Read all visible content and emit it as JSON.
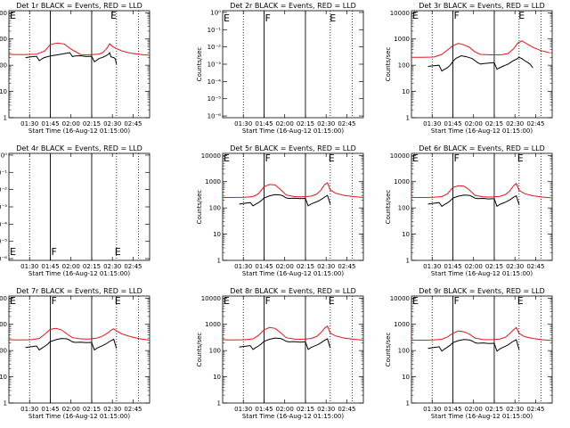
{
  "chart_data": {
    "type": "line",
    "x_tick_labels": [
      "01:30",
      "01:45",
      "02:00",
      "02:15",
      "02:30",
      "02:45"
    ],
    "x_ticks_min": [
      15,
      30,
      45,
      60,
      75,
      90
    ],
    "x_range_min": [
      0,
      102
    ],
    "xlabel": "Start Time (16-Aug-12 01:15:00)",
    "ylabel": "Counts/sec",
    "y_scale": "log",
    "log_tick_labels": [
      "1",
      "10",
      "100",
      "1000",
      "10000"
    ],
    "log_range": [
      1,
      12000
    ],
    "exp_tick_labels": [
      "10⁻⁶",
      "10⁻⁵",
      "10⁻⁴",
      "10⁻³",
      "10⁻²",
      "10⁻¹",
      "10⁰"
    ],
    "exp_range": [
      -6.1,
      0.1
    ],
    "ylabel_tick_sci": "Counts/sec",
    "solid_line_min": [
      30,
      60
    ],
    "dotted_line_min": [
      15,
      78,
      94
    ],
    "colors": {
      "events": "#000000",
      "lld": "#e8141a"
    },
    "panels": [
      {
        "title": "Det 1r BLACK = Events, RED = LLD",
        "scale": "log",
        "flags": [
          {
            "t": 0,
            "letter": "E"
          },
          {
            "t": 73,
            "letter": "E"
          }
        ],
        "lld": {
          "t": [
            0,
            10,
            20,
            26,
            30,
            35,
            40,
            45,
            52,
            56,
            60,
            65,
            68,
            71,
            73,
            75,
            78,
            82,
            88,
            95,
            102
          ],
          "v": [
            260,
            255,
            265,
            350,
            620,
            700,
            650,
            410,
            255,
            250,
            255,
            265,
            300,
            440,
            660,
            520,
            430,
            350,
            290,
            260,
            240
          ]
        },
        "events": {
          "t": [
            12,
            16,
            20,
            22,
            24,
            25,
            27,
            30,
            33,
            36,
            39,
            42,
            44,
            45,
            46,
            48,
            52,
            56,
            60,
            62,
            64,
            65,
            66,
            68,
            70,
            72,
            73,
            74,
            76,
            77,
            78
          ],
          "v": [
            195,
            210,
            220,
            150,
            175,
            190,
            205,
            225,
            240,
            255,
            270,
            290,
            300,
            260,
            215,
            225,
            230,
            215,
            220,
            135,
            160,
            175,
            185,
            200,
            225,
            260,
            300,
            210,
            195,
            180,
            110
          ]
        }
      },
      {
        "title": "Det 2r BLACK = Events, RED = LLD",
        "scale": "exp",
        "flags": [
          {
            "t": 0,
            "letter": "E"
          },
          {
            "t": 30,
            "letter": "F"
          },
          {
            "t": 77,
            "letter": "E"
          }
        ],
        "lld": {
          "t": [],
          "v": []
        },
        "events": {
          "t": [],
          "v": []
        }
      },
      {
        "title": "Det 3r BLACK = Events, RED = LLD",
        "scale": "log",
        "flags": [
          {
            "t": 0,
            "letter": "E"
          },
          {
            "t": 30,
            "letter": "F"
          },
          {
            "t": 77,
            "letter": "E"
          }
        ],
        "lld": {
          "t": [
            0,
            8,
            16,
            22,
            26,
            30,
            34,
            38,
            42,
            46,
            50,
            54,
            58,
            62,
            66,
            70,
            74,
            77,
            80,
            84,
            88,
            94,
            100
          ],
          "v": [
            200,
            200,
            205,
            260,
            380,
            560,
            680,
            600,
            480,
            320,
            260,
            255,
            250,
            250,
            255,
            280,
            420,
            700,
            850,
            640,
            480,
            360,
            300
          ]
        },
        "events": {
          "t": [
            12,
            16,
            20,
            22,
            24,
            26,
            28,
            30,
            32,
            36,
            40,
            44,
            46,
            48,
            50,
            52,
            56,
            60,
            62,
            64,
            66,
            68,
            70,
            72,
            74,
            76,
            78,
            80,
            82,
            84,
            86,
            88
          ],
          "v": [
            90,
            95,
            100,
            60,
            70,
            80,
            100,
            140,
            180,
            230,
            210,
            180,
            150,
            125,
            110,
            115,
            120,
            125,
            70,
            80,
            90,
            100,
            110,
            130,
            150,
            170,
            200,
            180,
            150,
            130,
            110,
            80
          ]
        }
      },
      {
        "title": "Det 4r BLACK = Events, RED = LLD",
        "scale": "exp",
        "flags": [
          {
            "t": 0,
            "letter": "E"
          },
          {
            "t": 30,
            "letter": "F"
          },
          {
            "t": 76,
            "letter": "E"
          }
        ],
        "lld": {
          "t": [],
          "v": []
        },
        "events": {
          "t": [],
          "v": []
        }
      },
      {
        "title": "Det 5r BLACK = Events, RED = LLD",
        "scale": "log",
        "flags": [
          {
            "t": 0,
            "letter": "E"
          },
          {
            "t": 30,
            "letter": "F"
          },
          {
            "t": 76,
            "letter": "E"
          }
        ],
        "lld": {
          "t": [
            0,
            8,
            16,
            22,
            26,
            30,
            34,
            38,
            42,
            46,
            52,
            56,
            60,
            64,
            68,
            71,
            74,
            76,
            78,
            82,
            88,
            95,
            102
          ],
          "v": [
            250,
            250,
            255,
            270,
            350,
            650,
            780,
            750,
            500,
            310,
            270,
            265,
            270,
            280,
            330,
            460,
            780,
            900,
            480,
            360,
            300,
            270,
            250
          ]
        },
        "events": {
          "t": [
            12,
            16,
            20,
            22,
            24,
            26,
            28,
            30,
            34,
            38,
            42,
            44,
            46,
            48,
            52,
            56,
            60,
            62,
            64,
            66,
            68,
            70,
            72,
            74,
            76,
            78
          ],
          "v": [
            140,
            150,
            160,
            120,
            140,
            160,
            190,
            240,
            290,
            320,
            310,
            280,
            240,
            230,
            235,
            225,
            230,
            120,
            140,
            155,
            170,
            190,
            220,
            260,
            300,
            140
          ]
        }
      },
      {
        "title": "Det 6r BLACK = Events, RED = LLD",
        "scale": "log",
        "flags": [
          {
            "t": 0,
            "letter": "E"
          },
          {
            "t": 30,
            "letter": "F"
          },
          {
            "t": 76,
            "letter": "E"
          }
        ],
        "lld": {
          "t": [
            0,
            8,
            16,
            22,
            26,
            30,
            34,
            38,
            42,
            46,
            52,
            56,
            60,
            64,
            68,
            71,
            74,
            76,
            78,
            82,
            88,
            95,
            102
          ],
          "v": [
            250,
            250,
            255,
            270,
            340,
            600,
            700,
            680,
            480,
            300,
            265,
            260,
            265,
            275,
            320,
            430,
            700,
            850,
            470,
            350,
            290,
            260,
            240
          ]
        },
        "events": {
          "t": [
            12,
            16,
            20,
            22,
            24,
            26,
            28,
            30,
            34,
            38,
            42,
            44,
            46,
            48,
            52,
            56,
            60,
            62,
            64,
            66,
            68,
            70,
            72,
            74,
            76,
            78
          ],
          "v": [
            140,
            150,
            160,
            115,
            135,
            155,
            185,
            235,
            280,
            310,
            300,
            270,
            235,
            225,
            230,
            220,
            225,
            115,
            135,
            150,
            165,
            185,
            215,
            255,
            290,
            135
          ]
        }
      },
      {
        "title": "Det 7r BLACK = Events, RED = LLD",
        "scale": "log",
        "flags": [
          {
            "t": 0,
            "letter": "E"
          },
          {
            "t": 30,
            "letter": "F"
          },
          {
            "t": 76,
            "letter": "E"
          }
        ],
        "lld": {
          "t": [
            0,
            8,
            16,
            22,
            26,
            30,
            34,
            38,
            42,
            46,
            52,
            56,
            60,
            64,
            68,
            72,
            74,
            76,
            78,
            82,
            88,
            95,
            102
          ],
          "v": [
            260,
            255,
            260,
            290,
            420,
            640,
            700,
            620,
            430,
            310,
            280,
            275,
            280,
            300,
            360,
            480,
            600,
            680,
            560,
            430,
            340,
            280,
            250
          ]
        },
        "events": {
          "t": [
            12,
            16,
            20,
            22,
            24,
            26,
            28,
            30,
            34,
            38,
            42,
            44,
            46,
            48,
            52,
            56,
            60,
            62,
            64,
            66,
            68,
            70,
            72,
            74,
            76,
            78
          ],
          "v": [
            130,
            140,
            150,
            105,
            125,
            145,
            175,
            220,
            260,
            290,
            280,
            250,
            215,
            205,
            210,
            200,
            205,
            105,
            125,
            140,
            155,
            175,
            205,
            240,
            270,
            120
          ]
        }
      },
      {
        "title": "Det 8r BLACK = Events, RED = LLD",
        "scale": "log",
        "flags": [
          {
            "t": 0,
            "letter": "E"
          },
          {
            "t": 30,
            "letter": "F"
          },
          {
            "t": 76,
            "letter": "E"
          }
        ],
        "lld": {
          "t": [
            0,
            8,
            16,
            22,
            26,
            30,
            34,
            38,
            42,
            46,
            52,
            56,
            60,
            64,
            68,
            71,
            74,
            76,
            78,
            82,
            88,
            95,
            102
          ],
          "v": [
            260,
            255,
            260,
            280,
            380,
            620,
            760,
            700,
            480,
            310,
            275,
            270,
            275,
            290,
            340,
            470,
            720,
            850,
            460,
            360,
            300,
            270,
            250
          ]
        },
        "events": {
          "t": [
            12,
            16,
            20,
            22,
            24,
            26,
            28,
            30,
            34,
            38,
            42,
            44,
            46,
            48,
            52,
            56,
            60,
            62,
            64,
            66,
            68,
            70,
            72,
            74,
            76,
            78
          ],
          "v": [
            135,
            145,
            155,
            110,
            130,
            150,
            180,
            225,
            270,
            300,
            290,
            260,
            225,
            215,
            220,
            210,
            215,
            110,
            130,
            145,
            160,
            180,
            210,
            250,
            280,
            125
          ]
        }
      },
      {
        "title": "Det 9r BLACK = Events, RED = LLD",
        "scale": "log",
        "flags": [
          {
            "t": 0,
            "letter": "E"
          },
          {
            "t": 30,
            "letter": "F"
          },
          {
            "t": 76,
            "letter": "E"
          }
        ],
        "lld": {
          "t": [
            0,
            8,
            16,
            22,
            26,
            30,
            34,
            38,
            42,
            46,
            52,
            56,
            60,
            64,
            68,
            71,
            74,
            76,
            78,
            82,
            88,
            95,
            102
          ],
          "v": [
            250,
            250,
            255,
            270,
            330,
            460,
            560,
            520,
            420,
            300,
            265,
            260,
            265,
            275,
            320,
            430,
            620,
            760,
            450,
            340,
            290,
            260,
            240
          ]
        },
        "events": {
          "t": [
            12,
            16,
            20,
            22,
            24,
            26,
            28,
            30,
            34,
            38,
            42,
            44,
            46,
            48,
            52,
            56,
            60,
            62,
            64,
            66,
            68,
            70,
            72,
            74,
            76,
            78
          ],
          "v": [
            120,
            130,
            140,
            95,
            115,
            135,
            160,
            200,
            240,
            265,
            255,
            230,
            200,
            190,
            195,
            185,
            190,
            95,
            115,
            130,
            145,
            165,
            195,
            230,
            260,
            110
          ]
        }
      }
    ]
  }
}
